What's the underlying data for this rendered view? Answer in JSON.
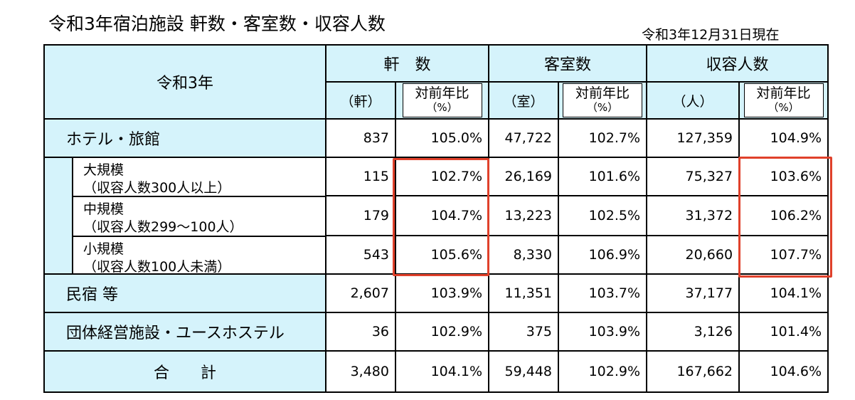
{
  "title": "令和3年宿泊施設 軒数・客室数・収容人数",
  "as_of": "令和3年12月31日現在",
  "accent_highlight": "#e0412b",
  "header_bg": "#d5f3fb",
  "header": {
    "year_label": "令和3年",
    "groups": [
      "軒　数",
      "客室数",
      "収容人数"
    ],
    "units": [
      "（軒）",
      "（室）",
      "（人）"
    ],
    "yoy_label": "対前年比",
    "yoy_unit": "（%）"
  },
  "rows": {
    "hotel": {
      "label": "ホテル・旅館",
      "values": [
        "837",
        "105.0%",
        "47,722",
        "102.7%",
        "127,359",
        "104.9%"
      ]
    },
    "large": {
      "label1": "大規模",
      "label2": "（収容人数300人以上）",
      "values": [
        "115",
        "102.7%",
        "26,169",
        "101.6%",
        "75,327",
        "103.6%"
      ]
    },
    "medium": {
      "label1": "中規模",
      "label2": "（収容人数299〜100人）",
      "values": [
        "179",
        "104.7%",
        "13,223",
        "102.5%",
        "31,372",
        "106.2%"
      ]
    },
    "small": {
      "label1": "小規模",
      "label2": "（収容人数100人未満）",
      "values": [
        "543",
        "105.6%",
        "8,330",
        "106.9%",
        "20,660",
        "107.7%"
      ]
    },
    "minshuku": {
      "label": "民宿 等",
      "values": [
        "2,607",
        "103.9%",
        "11,351",
        "103.7%",
        "37,177",
        "104.1%"
      ]
    },
    "group": {
      "label": "団体経営施設・ユースホステル",
      "values": [
        "36",
        "102.9%",
        "375",
        "103.9%",
        "3,126",
        "101.4%"
      ]
    },
    "total": {
      "label": "合　　計",
      "values": [
        "3,480",
        "104.1%",
        "59,448",
        "102.9%",
        "167,662",
        "104.6%"
      ]
    }
  }
}
